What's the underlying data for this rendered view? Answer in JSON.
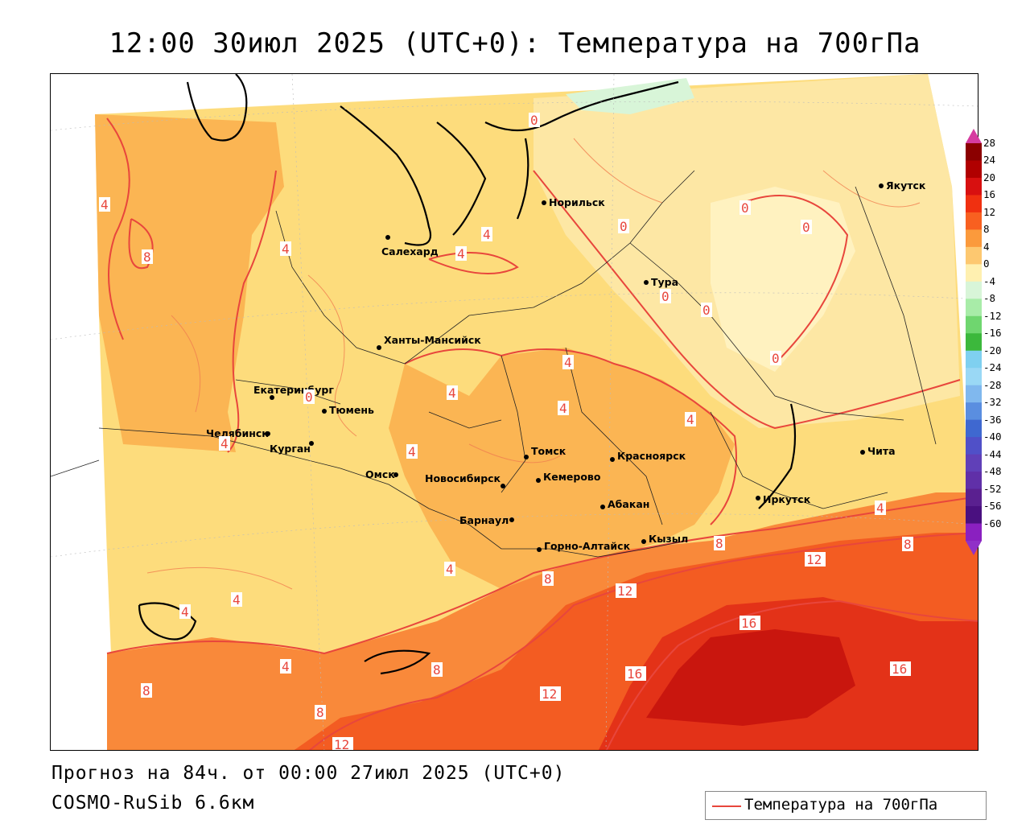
{
  "title": "12:00 30июл 2025 (UTC+0): Температура на 700гПа",
  "footer": {
    "forecast": "Прогноз на 84ч. от 00:00 27июл 2025 (UTC+0)",
    "model": "COSMO-RuSib 6.6км"
  },
  "legend": {
    "label": "Температура на 700гПа",
    "color": "#e8463c"
  },
  "colorbar": {
    "levels": [
      "28",
      "24",
      "20",
      "16",
      "12",
      "8",
      "4",
      "0",
      "-4",
      "-8",
      "-12",
      "-16",
      "-20",
      "-24",
      "-28",
      "-32",
      "-36",
      "-40",
      "-44",
      "-48",
      "-52",
      "-56",
      "-60"
    ],
    "colors": [
      "#8b0000",
      "#b00000",
      "#d81010",
      "#f03010",
      "#f86020",
      "#fb9a3c",
      "#fdc870",
      "#fff0b0",
      "#d8f5d8",
      "#a8eca8",
      "#6fd66f",
      "#3cb83c",
      "#7fd0f0",
      "#9ad8f5",
      "#80b8ee",
      "#5a8ee0",
      "#3f68d0",
      "#5050c8",
      "#6040b8",
      "#6030a8",
      "#5a2090",
      "#4a1080",
      "#8a20c0"
    ]
  },
  "cities": [
    {
      "name": "Норильск",
      "icon": "dot-marker"
    },
    {
      "name": "Якутск",
      "icon": "dot-marker"
    },
    {
      "name": "Салехард",
      "icon": "dot-marker"
    },
    {
      "name": "Тура",
      "icon": "dot-marker"
    },
    {
      "name": "Ханты-Мансийск",
      "icon": "dot-marker"
    },
    {
      "name": "Екатеринбург",
      "icon": "dot-marker"
    },
    {
      "name": "Тюмень",
      "icon": "dot-marker"
    },
    {
      "name": "Челябинск",
      "icon": "dot-marker"
    },
    {
      "name": "Курган",
      "icon": "dot-marker"
    },
    {
      "name": "Омск",
      "icon": "dot-marker"
    },
    {
      "name": "Томск",
      "icon": "dot-marker"
    },
    {
      "name": "Красноярск",
      "icon": "dot-marker"
    },
    {
      "name": "Новосибирск",
      "icon": "dot-marker"
    },
    {
      "name": "Кемерово",
      "icon": "dot-marker"
    },
    {
      "name": "Абакан",
      "icon": "dot-marker"
    },
    {
      "name": "Барнаул",
      "icon": "dot-marker"
    },
    {
      "name": "Горно-Алтайск",
      "icon": "dot-marker"
    },
    {
      "name": "Кызыл",
      "icon": "dot-marker"
    },
    {
      "name": "Иркутск",
      "icon": "dot-marker"
    },
    {
      "name": "Чита",
      "icon": "dot-marker"
    }
  ],
  "contour_labels": [
    "0",
    "4",
    "8",
    "12",
    "16"
  ]
}
